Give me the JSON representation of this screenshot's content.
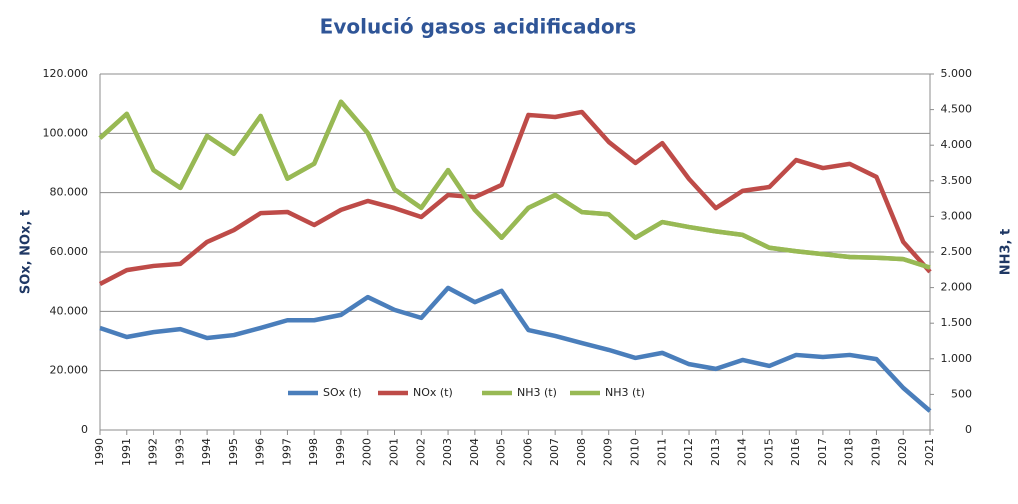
{
  "chart_data": {
    "type": "line",
    "title": "Evolució gasos acidificadors",
    "ylabel": "SOx, NOx, t",
    "y2label": "NH3, t",
    "x": [
      1990,
      1991,
      1992,
      1993,
      1994,
      1995,
      1996,
      1997,
      1998,
      1999,
      2000,
      2001,
      2002,
      2003,
      2004,
      2005,
      2006,
      2007,
      2008,
      2009,
      2010,
      2011,
      2012,
      2013,
      2014,
      2015,
      2016,
      2017,
      2018,
      2019,
      2020,
      2021
    ],
    "xlim": [
      1990,
      2021
    ],
    "ylim": [
      0,
      120000
    ],
    "yticks": [
      0,
      {
        "value": 20000,
        "label": "20.000"
      },
      {
        "value": 40000,
        "label": "40.000"
      },
      {
        "value": 60000,
        "label": "60.000"
      },
      {
        "value": 80000,
        "label": "80.000"
      },
      {
        "value": 100000,
        "label": "100.000"
      },
      {
        "value": 120000,
        "label": "120.000"
      }
    ],
    "y2lim": [
      0,
      5000
    ],
    "y2ticks": [
      0,
      500,
      {
        "value": 1000,
        "label": "1.000"
      },
      {
        "value": 1500,
        "label": "1.500"
      },
      {
        "value": 2000,
        "label": "2.000"
      },
      {
        "value": 2500,
        "label": "2.500"
      },
      {
        "value": 3000,
        "label": "3.000"
      },
      {
        "value": 3500,
        "label": "3.500"
      },
      {
        "value": 4000,
        "label": "4.000"
      },
      {
        "value": 4500,
        "label": "4.500"
      },
      {
        "value": 5000,
        "label": "5.000"
      }
    ],
    "grid": true,
    "legend": "bottom",
    "series": [
      {
        "name": "SOx (t)",
        "color": "#4a7ebb",
        "values": [
          34400,
          31350,
          33000,
          34000,
          31000,
          32000,
          34400,
          37000,
          37000,
          38800,
          44800,
          40500,
          37800,
          47900,
          43100,
          46900,
          33700,
          31700,
          29300,
          27000,
          24300,
          26000,
          22200,
          20600,
          23600,
          21600,
          25300,
          24600,
          25300,
          23900,
          14200,
          6400
        ]
      },
      {
        "name": "NOx (t)",
        "color": "#be4b48",
        "values": [
          49200,
          53900,
          55300,
          56000,
          63400,
          67400,
          73100,
          73500,
          69100,
          74200,
          77200,
          74800,
          71800,
          79200,
          78500,
          82600,
          106200,
          105500,
          107200,
          97100,
          90000,
          96700,
          84600,
          74800,
          80600,
          81900,
          91000,
          88300,
          89700,
          85300,
          63400,
          53300
        ]
      },
      {
        "name": "NH3 (t)",
        "color": "#98b954",
        "axis": "y2",
        "values": [
          4100,
          4440,
          3650,
          3400,
          4130,
          3880,
          4410,
          3530,
          3740,
          4610,
          4170,
          3380,
          3120,
          3650,
          3090,
          2700,
          3120,
          3300,
          3060,
          3030,
          2700,
          2920,
          2850,
          2790,
          2740,
          2560,
          2510,
          2470,
          2430,
          2420,
          2400,
          2280
        ]
      },
      {
        "name": "NH3 (t)",
        "color": "#98b954",
        "axis": "y2",
        "values": [
          4100,
          4440,
          3650,
          3400,
          4130,
          3880,
          4410,
          3530,
          3740,
          4610,
          4170,
          3380,
          3120,
          3650,
          3090,
          2700,
          3120,
          3300,
          3060,
          3030,
          2700,
          2920,
          2850,
          2790,
          2740,
          2560,
          2510,
          2470,
          2430,
          2420,
          2400,
          2280
        ]
      }
    ]
  }
}
